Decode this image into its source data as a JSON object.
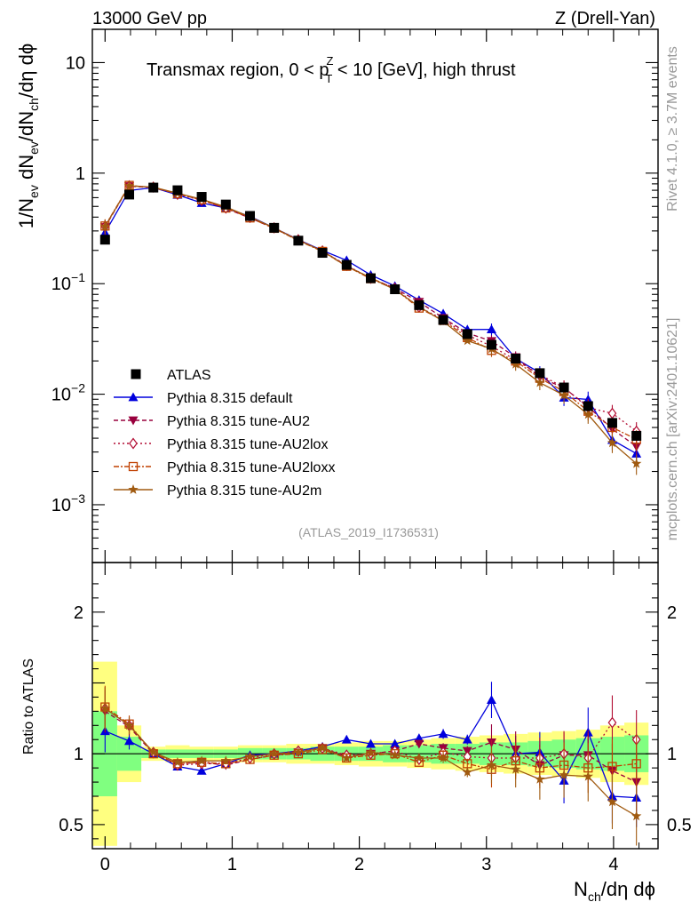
{
  "header": {
    "left": "13000 GeV pp",
    "right": "Z (Drell-Yan)"
  },
  "side_labels": {
    "rivet": "Rivet 4.1.0, ≥ 3.7M events",
    "mcplots": "mcplots.cern.ch [arXiv:2401.10621]"
  },
  "colors": {
    "ATLAS": "#000000",
    "default": "#0000dd",
    "AU2": "#99003d",
    "AU2lox": "#b20d33",
    "AU2loxx": "#c04000",
    "AU2m": "#a05a10",
    "band_yellow": "#ffff80",
    "band_green": "#80ff80"
  },
  "chart_data": {
    "type": "line",
    "title_parts": {
      "prefix": "Transmax region, 0 < p",
      "sup": "Z",
      "sub": "T",
      "suffix": " < 10 [GeV], high thrust"
    },
    "analysis_id": "(ATLAS_2019_I1736531)",
    "ylabel_main": "1/N_ev dN_ev/dN_ch/dη dϕ",
    "ylabel_ratio": "Ratio to ATLAS",
    "xlabel": "N_ch/dη dϕ",
    "xlim": [
      -0.1,
      4.35
    ],
    "ylim_main": [
      0.0003,
      20
    ],
    "ylim_ratio": [
      0.33,
      2.35
    ],
    "x_ticks": [
      0,
      1,
      2,
      3,
      4
    ],
    "x_tick_labels": [
      "0",
      "1",
      "2",
      "3",
      "4"
    ],
    "y_main_ticks": [
      0.001,
      0.01,
      0.1,
      1,
      10
    ],
    "y_main_tick_labels": [
      {
        "base": "10",
        "exp": "−3"
      },
      {
        "base": "10",
        "exp": "−2"
      },
      {
        "base": "10",
        "exp": "−1"
      },
      {
        "base": "1",
        "exp": ""
      },
      {
        "base": "10",
        "exp": ""
      }
    ],
    "y_ratio_ticks": [
      0.5,
      1,
      2
    ],
    "y_ratio_tick_labels": [
      "0.5",
      "1",
      "2"
    ],
    "x": [
      0,
      0.19,
      0.38,
      0.57,
      0.76,
      0.95,
      1.14,
      1.33,
      1.52,
      1.71,
      1.9,
      2.09,
      2.28,
      2.47,
      2.66,
      2.85,
      3.04,
      3.23,
      3.42,
      3.61,
      3.8,
      3.99,
      4.18
    ],
    "ref": {
      "name": "ATLAS",
      "values": [
        0.25,
        0.64,
        0.74,
        0.7,
        0.61,
        0.52,
        0.41,
        0.32,
        0.245,
        0.19,
        0.148,
        0.112,
        0.089,
        0.064,
        0.047,
        0.035,
        0.028,
        0.021,
        0.0155,
        0.0115,
        0.0078,
        0.0055,
        0.0042
      ]
    },
    "band_yellow_rel": [
      0.65,
      0.2,
      0.05,
      0.06,
      0.05,
      0.05,
      0.06,
      0.06,
      0.07,
      0.07,
      0.08,
      0.09,
      0.09,
      0.1,
      0.11,
      0.12,
      0.13,
      0.14,
      0.15,
      0.16,
      0.17,
      0.2,
      0.22
    ],
    "band_green_rel": [
      0.3,
      0.12,
      0.03,
      0.03,
      0.03,
      0.03,
      0.04,
      0.04,
      0.04,
      0.05,
      0.05,
      0.05,
      0.06,
      0.06,
      0.07,
      0.07,
      0.08,
      0.08,
      0.09,
      0.1,
      0.11,
      0.12,
      0.13
    ],
    "series": [
      {
        "name": "Pythia 8.315 default",
        "key": "default",
        "marker": "triangle-up",
        "dash": "",
        "ratios": [
          1.16,
          1.09,
          1.0,
          0.91,
          0.88,
          0.93,
          0.99,
          1.0,
          1.02,
          1.05,
          1.1,
          1.07,
          1.07,
          1.11,
          1.14,
          1.1,
          1.38,
          1.0,
          1.01,
          0.81,
          1.15,
          0.7,
          0.69
        ]
      },
      {
        "name": "Pythia 8.315 tune-AU2",
        "key": "AU2",
        "marker": "triangle-down",
        "dash": "5,3",
        "ratios": [
          1.3,
          1.19,
          1.0,
          0.93,
          0.94,
          0.92,
          0.96,
          0.99,
          1.01,
          1.04,
          0.98,
          1.0,
          1.02,
          1.07,
          1.04,
          1.02,
          1.08,
          1.03,
          0.92,
          0.99,
          0.99,
          0.88,
          0.8
        ]
      },
      {
        "name": "Pythia 8.315 tune-AU2lox",
        "key": "AU2lox",
        "marker": "diamond",
        "dash": "2,3",
        "ratios": [
          1.32,
          1.2,
          1.01,
          0.92,
          0.93,
          0.93,
          0.97,
          1.0,
          1.02,
          1.04,
          0.99,
          1.0,
          1.02,
          0.96,
          1.01,
          0.98,
          0.97,
          0.97,
          0.97,
          1.0,
          0.97,
          1.22,
          1.1
        ]
      },
      {
        "name": "Pythia 8.315 tune-AU2loxx",
        "key": "AU2loxx",
        "marker": "square-open",
        "dash": "6,2,2,2",
        "ratios": [
          1.33,
          1.21,
          1.0,
          0.93,
          0.94,
          0.93,
          0.96,
          0.99,
          1.0,
          1.03,
          0.97,
          0.99,
          1.0,
          0.94,
          0.99,
          0.93,
          0.89,
          0.95,
          0.9,
          0.92,
          0.9,
          0.91,
          0.93
        ]
      },
      {
        "name": "Pythia 8.315 tune-AU2m",
        "key": "AU2m",
        "marker": "star",
        "dash": "",
        "ratios": [
          1.32,
          1.2,
          1.01,
          0.94,
          0.95,
          0.95,
          0.98,
          1.0,
          1.01,
          1.04,
          0.97,
          1.01,
          0.99,
          0.97,
          0.97,
          0.87,
          0.92,
          0.89,
          0.82,
          0.85,
          0.84,
          0.66,
          0.56
        ]
      }
    ],
    "legend": {
      "position": "left-middle",
      "entries": [
        "ATLAS",
        "Pythia 8.315 default",
        "Pythia 8.315 tune-AU2",
        "Pythia 8.315 tune-AU2lox",
        "Pythia 8.315 tune-AU2loxx",
        "Pythia 8.315 tune-AU2m"
      ]
    }
  }
}
